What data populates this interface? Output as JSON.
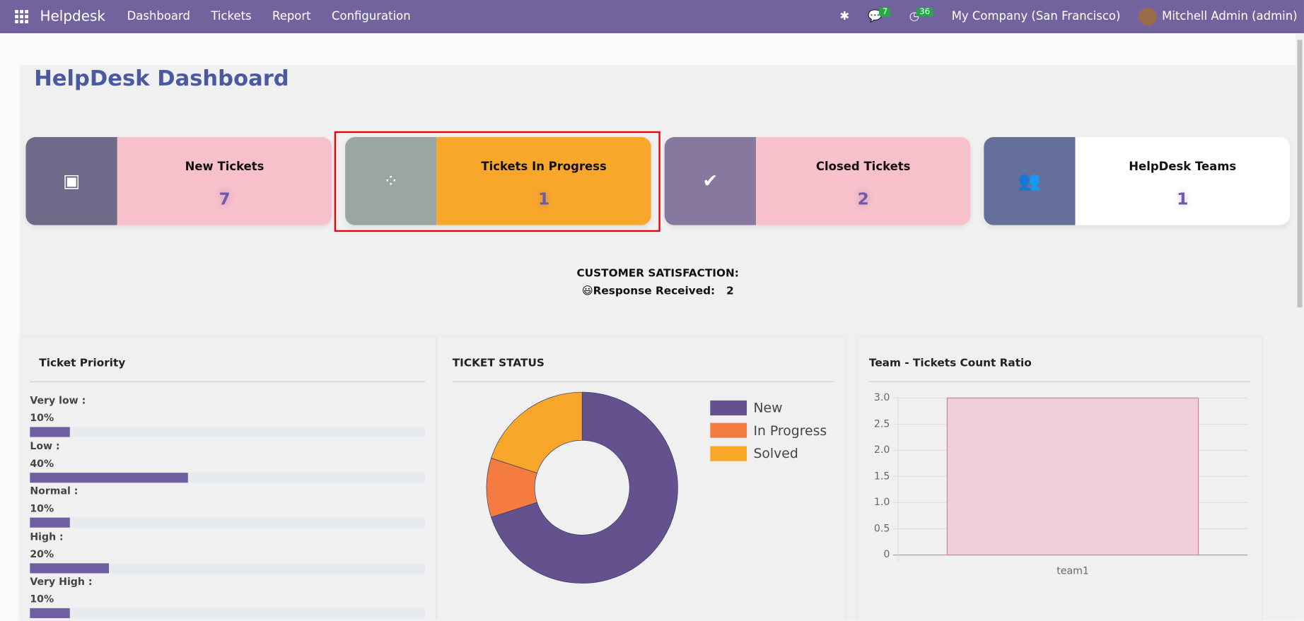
{
  "nav": {
    "brand": "Helpdesk",
    "menu": [
      "Dashboard",
      "Tickets",
      "Report",
      "Configuration"
    ],
    "messages_count": "7",
    "activities_count": "36",
    "company": "My Company (San Francisco)",
    "user": "Mitchell Admin (admin)"
  },
  "title": "HelpDesk Dashboard",
  "cards": [
    {
      "label": "New Tickets",
      "value": "7",
      "icon": "inbox-icon",
      "icon_bg": "#6e6a8a",
      "bg": "#f7c0cb"
    },
    {
      "label": "Tickets In Progress",
      "value": "1",
      "icon": "spinner-icon",
      "icon_bg": "#9aa6a4",
      "bg": "#f9a72b"
    },
    {
      "label": "Closed Tickets",
      "value": "2",
      "icon": "check-icon",
      "icon_bg": "#86789e",
      "bg": "#f7c0cb"
    },
    {
      "label": "HelpDesk Teams",
      "value": "1",
      "icon": "users-icon",
      "icon_bg": "#65709a",
      "bg": "#ffffff"
    }
  ],
  "satisfaction": {
    "heading": "CUSTOMER SATISFACTION:",
    "label": "😃Response Received:",
    "value": "2"
  },
  "priority": {
    "title": "Ticket Priority",
    "items": [
      {
        "label": "Very low :",
        "percent": "10%",
        "value": 10
      },
      {
        "label": "Low :",
        "percent": "40%",
        "value": 40
      },
      {
        "label": "Normal :",
        "percent": "10%",
        "value": 10
      },
      {
        "label": "High :",
        "percent": "20%",
        "value": 20
      },
      {
        "label": "Very High :",
        "percent": "10%",
        "value": 10
      }
    ]
  },
  "status": {
    "title": "TICKET STATUS"
  },
  "team": {
    "title": "Team - Tickets Count Ratio"
  },
  "chart_data": [
    {
      "type": "pie",
      "donut": true,
      "categories": [
        "New",
        "In Progress",
        "Solved"
      ],
      "values": [
        7,
        1,
        2
      ],
      "colors": [
        "#66518f",
        "#f47c40",
        "#f9a72b"
      ],
      "legend": "right"
    },
    {
      "type": "bar",
      "categories": [
        "team1"
      ],
      "values": [
        3
      ],
      "ylim": [
        0,
        3
      ],
      "yticks": [
        "0",
        "0.5",
        "1.0",
        "1.5",
        "2.0",
        "2.5",
        "3.0"
      ],
      "grid": true,
      "color": "#f0cfdb"
    }
  ]
}
